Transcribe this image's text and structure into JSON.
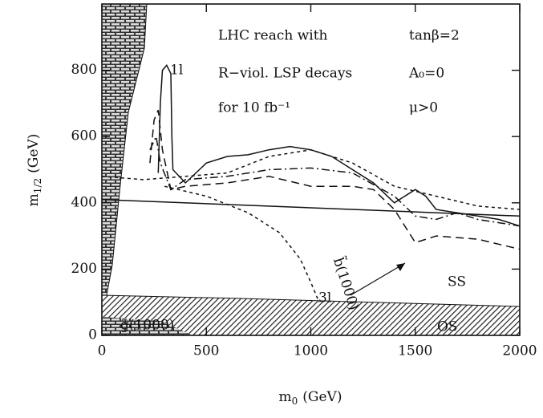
{
  "chart_data": {
    "type": "line",
    "x_label": {
      "base": "m",
      "sub": "0",
      "unit": "(GeV)"
    },
    "y_label": {
      "base": "m",
      "sub": "1/2",
      "unit": "(GeV)"
    },
    "xlim": [
      0,
      2000
    ],
    "ylim": [
      0,
      1000
    ],
    "xticks": [
      0,
      500,
      1000,
      1500,
      2000
    ],
    "yticks": [
      0,
      200,
      400,
      600,
      800
    ],
    "annotations": [
      "LHC reach with",
      "R−viol. LSP decays",
      "for 10 fb⁻¹",
      "tanβ=2",
      "A₀=0",
      "μ>0",
      "1l",
      "SS",
      "OS",
      "3l",
      "g̃(1000)",
      "b̃(1000)"
    ],
    "series": [
      {
        "style": "solid",
        "color": "#111",
        "x": [
          270,
          280,
          290,
          310,
          330,
          335,
          340,
          400,
          500,
          600,
          700,
          800,
          900,
          1000,
          1100,
          1200,
          1300,
          1400,
          1450,
          1500,
          1550,
          1600,
          1700,
          1800,
          1900,
          2000
        ],
        "values": [
          490,
          700,
          800,
          815,
          790,
          600,
          500,
          460,
          520,
          540,
          545,
          560,
          570,
          560,
          540,
          500,
          460,
          400,
          420,
          440,
          420,
          380,
          370,
          360,
          350,
          330
        ]
      },
      {
        "style": "dotted",
        "color": "#111",
        "x": [
          0,
          200,
          400,
          600,
          800,
          1000,
          1200,
          1400,
          1600,
          1800,
          2000
        ],
        "values": [
          480,
          470,
          480,
          490,
          540,
          560,
          520,
          450,
          420,
          390,
          380
        ]
      },
      {
        "style": "dashdot",
        "color": "#111",
        "x": [
          230,
          260,
          280,
          330,
          400,
          600,
          800,
          1000,
          1200,
          1400,
          1500,
          1600,
          1700,
          1800,
          1900,
          2000
        ],
        "values": [
          560,
          600,
          520,
          440,
          470,
          480,
          500,
          505,
          490,
          420,
          360,
          350,
          370,
          350,
          340,
          330
        ]
      },
      {
        "style": "dashed",
        "color": "#111",
        "x": [
          230,
          250,
          270,
          290,
          330,
          400,
          600,
          800,
          1000,
          1200,
          1300,
          1400,
          1500,
          1600,
          1800,
          2000
        ],
        "values": [
          520,
          650,
          680,
          560,
          440,
          450,
          460,
          480,
          450,
          450,
          440,
          380,
          280,
          300,
          290,
          260
        ]
      },
      {
        "style": "solid",
        "color": "#111",
        "x": [
          0,
          2000
        ],
        "values": [
          410,
          360
        ]
      },
      {
        "style": "dotted",
        "color": "#111",
        "x": [
          300,
          500,
          700,
          850,
          950,
          1000,
          1040
        ],
        "values": [
          450,
          420,
          370,
          310,
          230,
          160,
          100
        ]
      }
    ]
  }
}
